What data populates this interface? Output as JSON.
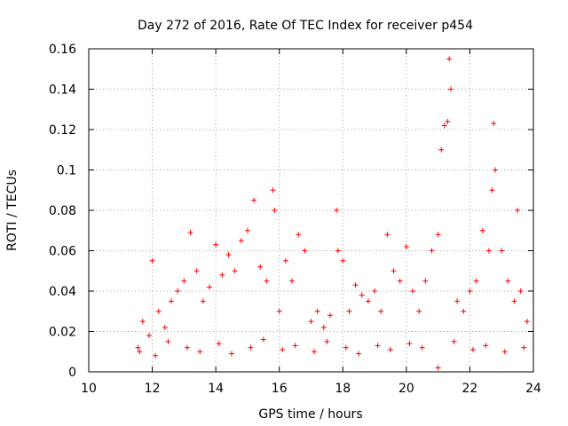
{
  "chart_data": {
    "type": "scatter",
    "title": "Day 272 of 2016, Rate Of TEC Index for receiver p454",
    "xlabel": "GPS time / hours",
    "ylabel": "ROTI / TECUs",
    "xlim": [
      10,
      24
    ],
    "ylim": [
      0,
      0.16
    ],
    "xticks": [
      10,
      12,
      14,
      16,
      18,
      20,
      22,
      24
    ],
    "xtick_labels": [
      "10",
      "12",
      "14",
      "16",
      "18",
      "20",
      "22",
      "24"
    ],
    "yticks": [
      0,
      0.02,
      0.04,
      0.06,
      0.08,
      0.1,
      0.12,
      0.14,
      0.16
    ],
    "ytick_labels": [
      "0",
      "0.02",
      "0.04",
      "0.06",
      "0.08",
      "0.1",
      "0.12",
      "0.14",
      "0.16"
    ],
    "grid": true,
    "marker": "+",
    "color": "#ff0000",
    "series": [
      {
        "name": "ROTI",
        "x": [
          11.55,
          11.7,
          11.9,
          12.0,
          12.2,
          12.4,
          12.6,
          12.8,
          13.0,
          13.2,
          13.4,
          13.6,
          13.8,
          14.0,
          14.2,
          14.4,
          14.6,
          14.8,
          15.0,
          15.2,
          15.4,
          15.6,
          15.8,
          15.85,
          16.0,
          16.2,
          16.4,
          16.6,
          16.8,
          17.0,
          17.2,
          17.4,
          17.6,
          17.8,
          17.85,
          18.0,
          18.2,
          18.4,
          18.6,
          18.8,
          19.0,
          19.2,
          19.4,
          19.6,
          19.8,
          20.0,
          20.2,
          20.4,
          20.6,
          20.8,
          21.0,
          21.1,
          21.2,
          21.3,
          21.35,
          21.4,
          21.6,
          21.8,
          22.0,
          22.2,
          22.4,
          22.6,
          22.7,
          22.75,
          22.8,
          23.0,
          23.2,
          23.4,
          23.5,
          23.6,
          23.8,
          11.6,
          12.1,
          12.5,
          13.1,
          13.5,
          14.1,
          14.5,
          15.1,
          15.5,
          16.1,
          16.5,
          17.1,
          17.5,
          18.1,
          18.5,
          19.1,
          19.5,
          20.1,
          20.5,
          21.0,
          21.5,
          22.1,
          22.5,
          23.1,
          23.7
        ],
        "y": [
          0.012,
          0.025,
          0.018,
          0.055,
          0.03,
          0.022,
          0.035,
          0.04,
          0.045,
          0.069,
          0.05,
          0.035,
          0.042,
          0.063,
          0.048,
          0.058,
          0.05,
          0.065,
          0.07,
          0.085,
          0.052,
          0.045,
          0.09,
          0.08,
          0.03,
          0.055,
          0.045,
          0.068,
          0.06,
          0.025,
          0.03,
          0.022,
          0.028,
          0.08,
          0.06,
          0.055,
          0.03,
          0.043,
          0.038,
          0.035,
          0.04,
          0.03,
          0.068,
          0.05,
          0.045,
          0.062,
          0.04,
          0.03,
          0.045,
          0.06,
          0.068,
          0.11,
          0.122,
          0.124,
          0.155,
          0.14,
          0.035,
          0.03,
          0.04,
          0.045,
          0.07,
          0.06,
          0.09,
          0.123,
          0.1,
          0.06,
          0.045,
          0.035,
          0.08,
          0.04,
          0.025,
          0.01,
          0.008,
          0.015,
          0.012,
          0.01,
          0.014,
          0.009,
          0.012,
          0.016,
          0.011,
          0.013,
          0.01,
          0.015,
          0.012,
          0.009,
          0.013,
          0.011,
          0.014,
          0.012,
          0.002,
          0.015,
          0.011,
          0.013,
          0.01,
          0.012
        ]
      }
    ]
  }
}
